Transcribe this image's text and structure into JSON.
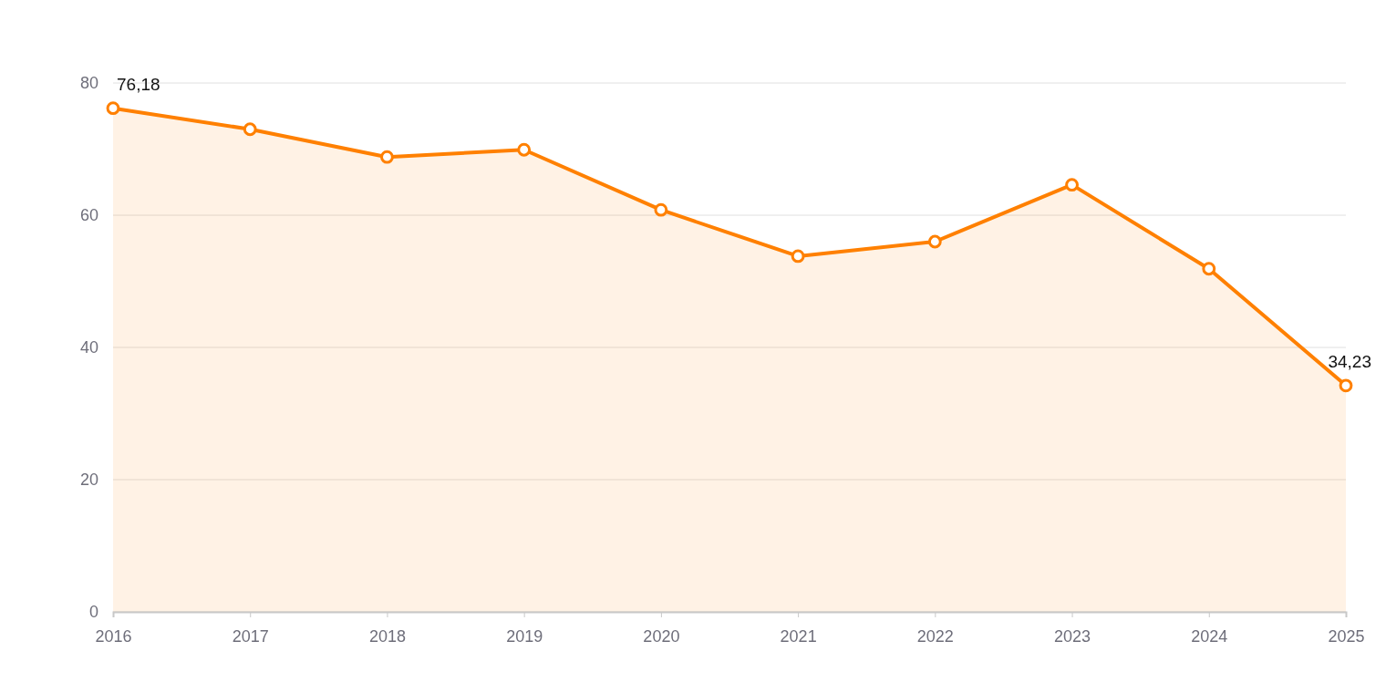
{
  "chart_data": {
    "type": "area",
    "categories": [
      "2016",
      "2017",
      "2018",
      "2019",
      "2020",
      "2021",
      "2022",
      "2023",
      "2024",
      "2025"
    ],
    "series": [
      {
        "color": "#ff8000",
        "values": [
          76.18,
          73,
          68.8,
          69.9,
          60.8,
          53.8,
          56,
          64.6,
          51.9,
          34.23
        ],
        "value_labels": [
          "76,18",
          null,
          null,
          null,
          null,
          null,
          null,
          null,
          null,
          "34,23"
        ]
      }
    ],
    "ylim": [
      0,
      80
    ],
    "yticks": [
      0,
      20,
      40,
      60,
      80
    ],
    "grid": "y",
    "marker": "circle",
    "line_style": "solid"
  }
}
